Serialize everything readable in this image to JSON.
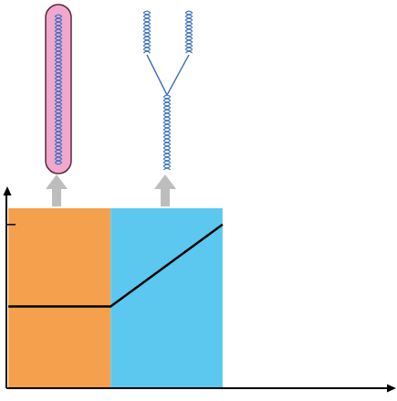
{
  "chart_data": {
    "type": "line",
    "x": [
      0.05,
      2.7,
      5.6
    ],
    "values": [
      1,
      1,
      2
    ],
    "color": "#000000",
    "xlim": [
      0,
      10
    ],
    "ylim": [
      0,
      2.4
    ],
    "yticks": [
      2
    ],
    "tick_labels": false,
    "bands": [
      {
        "from": 0.05,
        "to": 2.7,
        "top": 2.2,
        "color": "#f4a04c"
      },
      {
        "from": 2.7,
        "to": 5.6,
        "top": 2.2,
        "color": "#5cc8f0"
      }
    ]
  }
}
